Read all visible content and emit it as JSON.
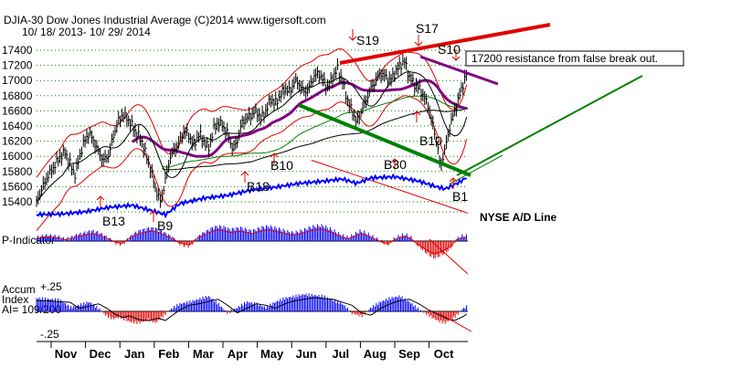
{
  "header": {
    "title": "DJIA-30  Dow Jones Industrial Average   (C)2014 www.tigersoft.com",
    "date_range": "10/ 18/ 2013-  10/ 29/ 2014"
  },
  "colors": {
    "price": "#000000",
    "red": "#e00000",
    "blue": "#0000ff",
    "purple": "#800080",
    "green": "#008000",
    "grid": "#008000"
  },
  "chart_data": [
    {
      "type": "line",
      "title": "DJIA-30  Dow Jones Industrial Average",
      "y_ticks": [
        "17400",
        "17200",
        "17000",
        "16800",
        "16600",
        "16400",
        "16200",
        "16000",
        "15800",
        "15600",
        "15400"
      ],
      "ylim": [
        15300,
        17550
      ],
      "x_labels": [
        "Nov",
        "Dec",
        "Jan",
        "Feb",
        "Mar",
        "Apr",
        "May",
        "Jun",
        "Jul",
        "Aug",
        "Sep",
        "Oct"
      ],
      "series": [
        {
          "role": "price",
          "points": [
            [
              0,
              15400
            ],
            [
              4,
              15550
            ],
            [
              8,
              15700
            ],
            [
              12,
              15800
            ],
            [
              16,
              15900
            ],
            [
              20,
              16000
            ],
            [
              24,
              16050
            ],
            [
              28,
              15900
            ],
            [
              32,
              15750
            ],
            [
              36,
              16000
            ],
            [
              40,
              16200
            ],
            [
              44,
              16300
            ],
            [
              48,
              16200
            ],
            [
              52,
              16050
            ],
            [
              56,
              15950
            ],
            [
              60,
              16000
            ],
            [
              64,
              16250
            ],
            [
              68,
              16450
            ],
            [
              72,
              16550
            ],
            [
              76,
              16500
            ],
            [
              80,
              16400
            ],
            [
              84,
              16300
            ],
            [
              88,
              16200
            ],
            [
              92,
              16000
            ],
            [
              96,
              15800
            ],
            [
              100,
              15550
            ],
            [
              104,
              15400
            ],
            [
              108,
              15700
            ],
            [
              112,
              16000
            ],
            [
              116,
              16100
            ],
            [
              120,
              16200
            ],
            [
              124,
              16350
            ],
            [
              128,
              16250
            ],
            [
              132,
              16150
            ],
            [
              136,
              16300
            ],
            [
              140,
              16200
            ],
            [
              144,
              16100
            ],
            [
              148,
              16350
            ],
            [
              152,
              16450
            ],
            [
              156,
              16400
            ],
            [
              160,
              16300
            ],
            [
              164,
              16100
            ],
            [
              168,
              16200
            ],
            [
              172,
              16450
            ],
            [
              176,
              16500
            ],
            [
              180,
              16550
            ],
            [
              184,
              16600
            ],
            [
              188,
              16500
            ],
            [
              192,
              16600
            ],
            [
              196,
              16750
            ],
            [
              200,
              16700
            ],
            [
              204,
              16800
            ],
            [
              208,
              16900
            ],
            [
              212,
              16850
            ],
            [
              216,
              17000
            ],
            [
              220,
              16950
            ],
            [
              224,
              16850
            ],
            [
              228,
              16900
            ],
            [
              232,
              17050
            ],
            [
              236,
              17100
            ],
            [
              240,
              17000
            ],
            [
              244,
              16900
            ],
            [
              248,
              17050
            ],
            [
              252,
              17150
            ],
            [
              256,
              17000
            ],
            [
              260,
              16750
            ],
            [
              264,
              16600
            ],
            [
              268,
              16450
            ],
            [
              272,
              16600
            ],
            [
              276,
              16750
            ],
            [
              280,
              16900
            ],
            [
              284,
              17000
            ],
            [
              288,
              17100
            ],
            [
              292,
              17050
            ],
            [
              296,
              17000
            ],
            [
              300,
              17100
            ],
            [
              304,
              17200
            ],
            [
              308,
              17250
            ],
            [
              312,
              17050
            ],
            [
              316,
              16950
            ],
            [
              320,
              16900
            ],
            [
              324,
              16800
            ],
            [
              328,
              16650
            ],
            [
              332,
              16400
            ],
            [
              336,
              16100
            ],
            [
              338,
              15850
            ],
            [
              342,
              16100
            ],
            [
              346,
              16400
            ],
            [
              350,
              16600
            ],
            [
              354,
              16800
            ],
            [
              358,
              17000
            ],
            [
              361,
              17150
            ]
          ]
        },
        {
          "role": "accumulation_index",
          "points": [
            [
              0,
              0.14
            ],
            [
              10,
              0.13
            ],
            [
              20,
              0.12
            ],
            [
              28,
              0.04
            ],
            [
              34,
              0.06
            ],
            [
              44,
              0.1
            ],
            [
              52,
              0.03
            ],
            [
              58,
              -0.04
            ],
            [
              64,
              -0.08
            ],
            [
              70,
              -0.06
            ],
            [
              78,
              -0.11
            ],
            [
              86,
              -0.12
            ],
            [
              94,
              -0.09
            ],
            [
              100,
              -0.12
            ],
            [
              104,
              -0.07
            ],
            [
              112,
              0.02
            ],
            [
              120,
              0.08
            ],
            [
              128,
              0.1
            ],
            [
              136,
              0.13
            ],
            [
              144,
              0.16
            ],
            [
              152,
              0.08
            ],
            [
              160,
              -0.02
            ],
            [
              168,
              0.04
            ],
            [
              176,
              0.1
            ],
            [
              184,
              0.08
            ],
            [
              192,
              0.04
            ],
            [
              200,
              0.1
            ],
            [
              208,
              0.14
            ],
            [
              216,
              0.16
            ],
            [
              224,
              0.18
            ],
            [
              232,
              0.17
            ],
            [
              240,
              0.16
            ],
            [
              248,
              0.12
            ],
            [
              256,
              0.08
            ],
            [
              264,
              -0.02
            ],
            [
              272,
              -0.05
            ],
            [
              280,
              0.04
            ],
            [
              288,
              0.1
            ],
            [
              296,
              0.14
            ],
            [
              304,
              0.16
            ],
            [
              312,
              0.1
            ],
            [
              320,
              0.02
            ],
            [
              328,
              -0.04
            ],
            [
              336,
              -0.1
            ],
            [
              342,
              -0.12
            ],
            [
              350,
              -0.06
            ],
            [
              356,
              0.02
            ],
            [
              361,
              0.06
            ]
          ]
        }
      ],
      "signals": [
        "S19",
        "S17",
        "S10",
        "B13",
        "B9",
        "B18",
        "B10",
        "B30",
        "B10",
        "B1"
      ],
      "annotation": "17200 resistance from false break out."
    },
    {
      "type": "line",
      "series": [
        {
          "role": "nyse_ad_line",
          "name": "NYSE A/D Line",
          "points": [
            [
              0,
              0.05
            ],
            [
              20,
              0.06
            ],
            [
              40,
              0.1
            ],
            [
              60,
              0.18
            ],
            [
              80,
              0.22
            ],
            [
              100,
              0.1
            ],
            [
              108,
              0.05
            ],
            [
              120,
              0.25
            ],
            [
              140,
              0.35
            ],
            [
              160,
              0.4
            ],
            [
              180,
              0.5
            ],
            [
              200,
              0.55
            ],
            [
              220,
              0.62
            ],
            [
              240,
              0.66
            ],
            [
              256,
              0.7
            ],
            [
              268,
              0.62
            ],
            [
              280,
              0.72
            ],
            [
              300,
              0.74
            ],
            [
              320,
              0.66
            ],
            [
              336,
              0.55
            ],
            [
              342,
              0.52
            ],
            [
              352,
              0.62
            ],
            [
              361,
              0.74
            ]
          ]
        }
      ]
    },
    {
      "type": "bar",
      "title": "P-Indicator",
      "values": [
        0.2,
        0.3,
        0.35,
        0.3,
        0.25,
        0.1,
        0.2,
        0.35,
        0.45,
        0.55,
        0.6,
        0.5,
        0.3,
        0.1,
        -0.1,
        -0.2,
        0.1,
        0.4,
        0.6,
        0.7,
        0.8,
        0.75,
        0.6,
        0.4,
        0.2,
        -0.1,
        -0.25,
        -0.3,
        0.1,
        0.4,
        0.6,
        0.8,
        0.9,
        0.85,
        0.7,
        0.75,
        0.8,
        0.7,
        0.6,
        0.75,
        0.85,
        0.9,
        0.8,
        0.7,
        0.6,
        0.5,
        0.55,
        0.65,
        0.8,
        0.9,
        0.95,
        0.85,
        0.7,
        0.5,
        0.3,
        0.2,
        0.4,
        0.6,
        0.5,
        0.3,
        0.1,
        -0.1,
        -0.2,
        0.1,
        0.3,
        0.4,
        0.2,
        -0.2,
        -0.5,
        -0.8,
        -1.0,
        -0.9,
        -0.7,
        -0.4,
        0.1,
        0.3
      ]
    },
    {
      "type": "bar",
      "title": "Accum Index",
      "reading": "AI= 109/200",
      "y_ticks": [
        "+.25",
        "-.25"
      ],
      "ylim": [
        -0.25,
        0.25
      ]
    }
  ]
}
